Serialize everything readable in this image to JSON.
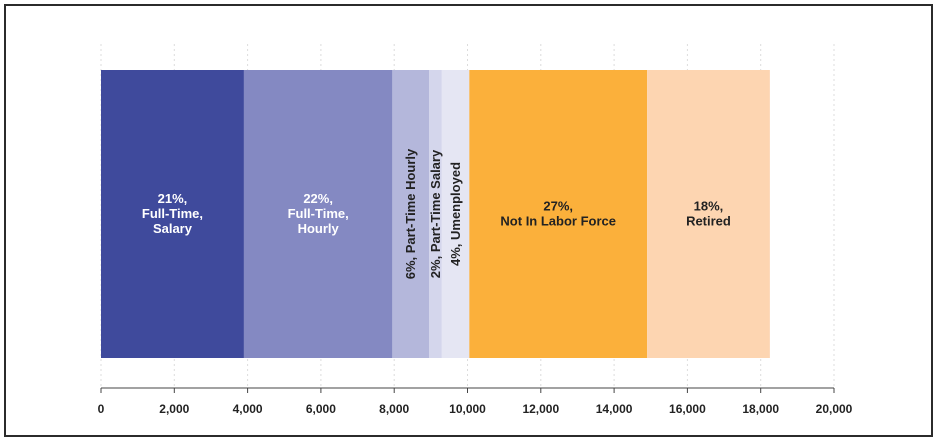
{
  "chart_data": {
    "type": "bar",
    "orientation": "horizontal-stacked",
    "title": "",
    "xlabel": "",
    "ylabel": "",
    "xlim": [
      0,
      20000
    ],
    "x_ticks": [
      "0",
      "2,000",
      "4,000",
      "6,000",
      "8,000",
      "10,000",
      "12,000",
      "14,000",
      "16,000",
      "18,000",
      "20,000"
    ],
    "grid": true,
    "legend": "none",
    "segments": [
      {
        "category": "Full-Time, Salary",
        "value": 3900,
        "percent_label": "21%,",
        "label_lines": [
          "21%,",
          "Full-Time,",
          "Salary"
        ],
        "vertical": false,
        "color": "#3f4a9c",
        "text_color": "#ffffff"
      },
      {
        "category": "Full-Time, Hourly",
        "value": 4050,
        "percent_label": "22%,",
        "label_lines": [
          "22%,",
          "Full-Time,",
          "Hourly"
        ],
        "vertical": false,
        "color": "#8489c2",
        "text_color": "#ffffff"
      },
      {
        "category": "Part-Time Hourly",
        "value": 1000,
        "percent_label": "6%,",
        "label_lines": [
          "6%, Part-Time Hourly"
        ],
        "vertical": true,
        "color": "#b4b7db",
        "text_color": "#222222"
      },
      {
        "category": "Part-Time Salary",
        "value": 350,
        "percent_label": "2%,",
        "label_lines": [
          "2%, Part-Time Salary"
        ],
        "vertical": true,
        "color": "#d4d6ec",
        "text_color": "#222222"
      },
      {
        "category": "Umenployed",
        "value": 750,
        "percent_label": "4%,",
        "label_lines": [
          "4%, Umenployed"
        ],
        "vertical": true,
        "color": "#e5e6f3",
        "text_color": "#222222"
      },
      {
        "category": "Not In Labor Force",
        "value": 4850,
        "percent_label": "27%,",
        "label_lines": [
          "27%,",
          "Not In Labor Force"
        ],
        "vertical": false,
        "color": "#fbb03b",
        "text_color": "#222222"
      },
      {
        "category": "Retired",
        "value": 3350,
        "percent_label": "18%,",
        "label_lines": [
          "18%,",
          "Retired"
        ],
        "vertical": false,
        "color": "#fdd5b1",
        "text_color": "#222222"
      }
    ]
  }
}
